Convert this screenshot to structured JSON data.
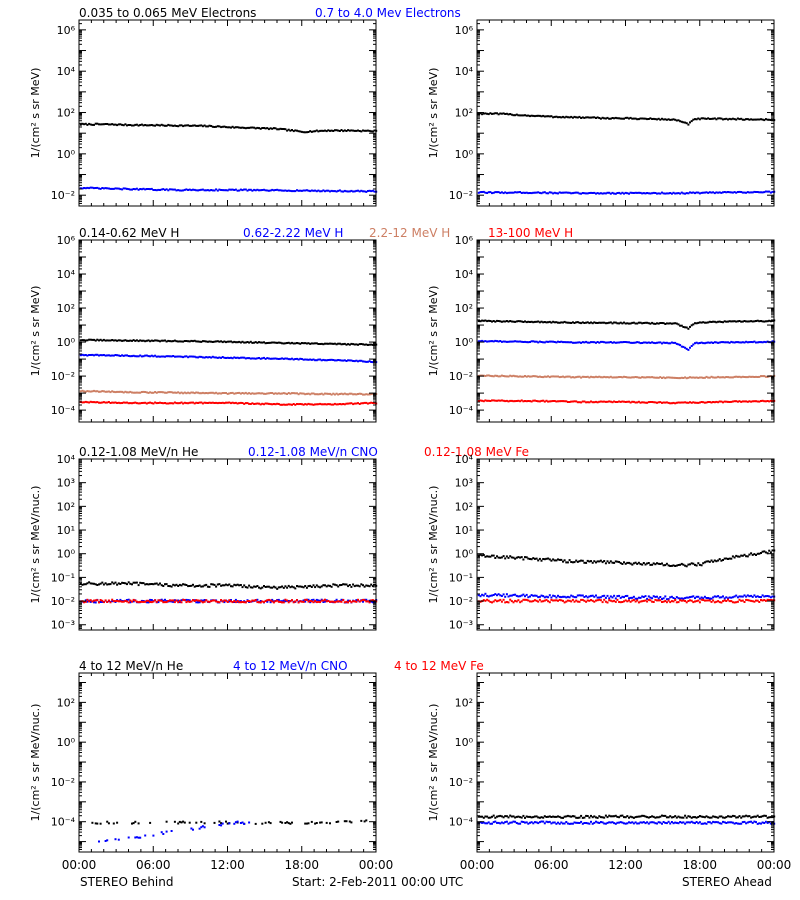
{
  "figure": {
    "footer_left": "STEREO Behind",
    "footer_center": "Start:  2-Feb-2011 00:00 UTC",
    "footer_right": "STEREO Ahead",
    "x_ticks": [
      "00:00",
      "06:00",
      "12:00",
      "18:00",
      "00:00"
    ],
    "colors": {
      "black": "#000000",
      "blue": "#0000ff",
      "tan": "#cd7f64",
      "red": "#ff0000",
      "axis": "#000000"
    }
  },
  "chart_data": [
    {
      "id": "electrons-behind",
      "type": "scatter",
      "spacecraft": "STEREO Behind",
      "ylabel": "1/(cm² s sr MeV)",
      "yscale": "log",
      "ylim": [
        0.003,
        3000000
      ],
      "y_ticks": [
        0.01,
        1,
        100,
        10000,
        1000000
      ],
      "xlim_hours": [
        0,
        24
      ],
      "legend": [
        {
          "text": "0.035 to 0.065 MeV Electrons",
          "color": "#000000"
        },
        {
          "text": "0.7 to 4.0 Mev Electrons",
          "color": "#0000ff"
        }
      ],
      "series": [
        {
          "name": "0.035 to 0.065 MeV Electrons",
          "color": "#000000",
          "x": [
            0,
            2,
            4,
            6,
            8,
            10,
            12,
            14,
            16,
            18,
            20,
            22,
            24
          ],
          "y": [
            30,
            30,
            28,
            27,
            26,
            25,
            22,
            20,
            18,
            13,
            15,
            15,
            14
          ]
        },
        {
          "name": "0.7 to 4.0 Mev Electrons",
          "color": "#0000ff",
          "x": [
            0,
            4,
            8,
            12,
            16,
            20,
            24
          ],
          "y": [
            0.025,
            0.022,
            0.02,
            0.02,
            0.019,
            0.018,
            0.017
          ]
        }
      ]
    },
    {
      "id": "electrons-ahead",
      "type": "scatter",
      "spacecraft": "STEREO Ahead",
      "ylabel": "1/(cm² s sr MeV)",
      "yscale": "log",
      "ylim": [
        0.003,
        3000000
      ],
      "y_ticks": [
        0.01,
        1,
        100,
        10000,
        1000000
      ],
      "xlim_hours": [
        0,
        24
      ],
      "legend": [],
      "series": [
        {
          "name": "0.035 to 0.065 MeV Electrons",
          "color": "#000000",
          "x": [
            0,
            2,
            4,
            6,
            8,
            10,
            12,
            14,
            16,
            17,
            17.5,
            18,
            20,
            22,
            24
          ],
          "y": [
            100,
            95,
            80,
            70,
            65,
            60,
            58,
            55,
            50,
            30,
            55,
            55,
            55,
            52,
            50
          ]
        },
        {
          "name": "0.7 to 4.0 Mev Electrons",
          "color": "#0000ff",
          "x": [
            0,
            4,
            8,
            12,
            16,
            20,
            24
          ],
          "y": [
            0.015,
            0.015,
            0.014,
            0.014,
            0.014,
            0.015,
            0.016
          ]
        }
      ]
    },
    {
      "id": "protons-behind",
      "type": "scatter",
      "spacecraft": "STEREO Behind",
      "ylabel": "1/(cm² s sr MeV)",
      "yscale": "log",
      "ylim": [
        2e-05,
        1000000
      ],
      "y_ticks": [
        0.0001,
        0.01,
        1,
        100,
        10000,
        1000000
      ],
      "xlim_hours": [
        0,
        24
      ],
      "legend": [
        {
          "text": "0.14-0.62 MeV H",
          "color": "#000000"
        },
        {
          "text": "0.62-2.22 MeV H",
          "color": "#0000ff"
        },
        {
          "text": "2.2-12 MeV H",
          "color": "#cd7f64"
        },
        {
          "text": "13-100 MeV H",
          "color": "#ff0000"
        }
      ],
      "series": [
        {
          "name": "0.14-0.62 MeV H",
          "color": "#000000",
          "x": [
            0,
            4,
            8,
            12,
            16,
            20,
            24
          ],
          "y": [
            1.5,
            1.4,
            1.3,
            1.2,
            1.0,
            0.9,
            0.8
          ]
        },
        {
          "name": "0.62-2.22 MeV H",
          "color": "#0000ff",
          "x": [
            0,
            4,
            8,
            12,
            16,
            20,
            24
          ],
          "y": [
            0.2,
            0.18,
            0.16,
            0.14,
            0.12,
            0.1,
            0.08
          ]
        },
        {
          "name": "2.2-12 MeV H",
          "color": "#cd7f64",
          "x": [
            0,
            4,
            8,
            12,
            16,
            20,
            24
          ],
          "y": [
            0.0015,
            0.0013,
            0.0012,
            0.0011,
            0.0011,
            0.001,
            0.001
          ]
        },
        {
          "name": "13-100 MeV H",
          "color": "#ff0000",
          "x": [
            0,
            4,
            8,
            12,
            16,
            20,
            24
          ],
          "y": [
            0.00035,
            0.0003,
            0.0003,
            0.0003,
            0.00025,
            0.00025,
            0.0003
          ]
        }
      ]
    },
    {
      "id": "protons-ahead",
      "type": "scatter",
      "spacecraft": "STEREO Ahead",
      "ylabel": "1/(cm² s sr MeV)",
      "yscale": "log",
      "ylim": [
        2e-05,
        1000000
      ],
      "y_ticks": [
        0.0001,
        0.01,
        1,
        100,
        10000,
        1000000
      ],
      "xlim_hours": [
        0,
        24
      ],
      "legend": [],
      "series": [
        {
          "name": "0.14-0.62 MeV H",
          "color": "#000000",
          "x": [
            0,
            4,
            8,
            12,
            16,
            17,
            17.5,
            18,
            20,
            24
          ],
          "y": [
            20,
            18,
            16,
            15,
            14,
            7,
            15,
            16,
            18,
            20
          ]
        },
        {
          "name": "0.62-2.22 MeV H",
          "color": "#0000ff",
          "x": [
            0,
            4,
            8,
            12,
            16,
            17,
            17.5,
            18,
            20,
            24
          ],
          "y": [
            1.3,
            1.2,
            1.1,
            1.1,
            1.0,
            0.4,
            1.0,
            1.0,
            1.1,
            1.2
          ]
        },
        {
          "name": "2.2-12 MeV H",
          "color": "#cd7f64",
          "x": [
            0,
            4,
            8,
            12,
            16,
            20,
            24
          ],
          "y": [
            0.012,
            0.011,
            0.01,
            0.01,
            0.009,
            0.01,
            0.011
          ]
        },
        {
          "name": "13-100 MeV H",
          "color": "#ff0000",
          "x": [
            0,
            4,
            8,
            12,
            16,
            20,
            24
          ],
          "y": [
            0.0004,
            0.0004,
            0.00035,
            0.00035,
            0.0003,
            0.00035,
            0.0004
          ]
        }
      ]
    },
    {
      "id": "heavy-low-behind",
      "type": "scatter",
      "spacecraft": "STEREO Behind",
      "ylabel": "1/(cm² s sr MeV/nuc.)",
      "yscale": "log",
      "ylim": [
        0.0006,
        10000
      ],
      "y_ticks": [
        0.001,
        0.01,
        0.1,
        1,
        10,
        100,
        1000,
        10000
      ],
      "xlim_hours": [
        0,
        24
      ],
      "legend": [
        {
          "text": "0.12-1.08 MeV/n He",
          "color": "#000000"
        },
        {
          "text": "0.12-1.08 MeV/n CNO",
          "color": "#0000ff"
        },
        {
          "text": "0.12-1.08 MeV Fe",
          "color": "#ff0000"
        }
      ],
      "series": [
        {
          "name": "0.12-1.08 MeV/n He",
          "color": "#000000",
          "x": [
            0,
            4,
            8,
            12,
            16,
            20,
            24
          ],
          "y": [
            0.06,
            0.06,
            0.05,
            0.05,
            0.04,
            0.05,
            0.05
          ]
        },
        {
          "name": "0.12-1.08 MeV/n CNO",
          "color": "#0000ff",
          "x": [
            0,
            4,
            8,
            12,
            16,
            20,
            24
          ],
          "y": [
            0.011,
            0.011,
            0.011,
            0.011,
            0.011,
            0.011,
            0.011
          ]
        },
        {
          "name": "0.12-1.08 MeV Fe",
          "color": "#ff0000",
          "x": [
            0,
            4,
            8,
            12,
            16,
            20,
            24
          ],
          "y": [
            0.011,
            0.011,
            0.011,
            0.011,
            0.011,
            0.011,
            0.011
          ]
        }
      ]
    },
    {
      "id": "heavy-low-ahead",
      "type": "scatter",
      "spacecraft": "STEREO Ahead",
      "ylabel": "1/(cm² s sr MeV/nuc.)",
      "yscale": "log",
      "ylim": [
        0.0006,
        10000
      ],
      "y_ticks": [
        0.001,
        0.01,
        0.1,
        1,
        10,
        100,
        1000,
        10000
      ],
      "xlim_hours": [
        0,
        24
      ],
      "legend": [],
      "series": [
        {
          "name": "0.12-1.08 MeV/n He",
          "color": "#000000",
          "x": [
            0,
            2,
            4,
            6,
            8,
            10,
            12,
            14,
            16,
            18,
            20,
            22,
            24
          ],
          "y": [
            0.9,
            0.8,
            0.7,
            0.6,
            0.5,
            0.5,
            0.45,
            0.4,
            0.35,
            0.4,
            0.7,
            1.0,
            1.4
          ]
        },
        {
          "name": "0.12-1.08 MeV/n CNO",
          "color": "#0000ff",
          "x": [
            0,
            4,
            8,
            12,
            16,
            20,
            24
          ],
          "y": [
            0.02,
            0.018,
            0.017,
            0.016,
            0.015,
            0.016,
            0.018
          ]
        },
        {
          "name": "0.12-1.08 MeV Fe",
          "color": "#ff0000",
          "x": [
            0,
            4,
            8,
            12,
            16,
            20,
            24
          ],
          "y": [
            0.011,
            0.011,
            0.011,
            0.011,
            0.011,
            0.011,
            0.011
          ]
        }
      ]
    },
    {
      "id": "heavy-high-behind",
      "type": "scatter",
      "spacecraft": "STEREO Behind",
      "ylabel": "1/(cm² s sr MeV/nuc.)",
      "yscale": "log",
      "ylim": [
        3e-06,
        3000
      ],
      "y_ticks": [
        0.0001,
        0.01,
        1,
        100
      ],
      "xlim_hours": [
        0,
        24
      ],
      "legend": [
        {
          "text": "4 to 12 MeV/n He",
          "color": "#000000"
        },
        {
          "text": "4 to 12 MeV/n CNO",
          "color": "#0000ff"
        },
        {
          "text": "4 to 12 MeV Fe",
          "color": "#ff0000"
        }
      ],
      "series": [
        {
          "name": "4 to 12 MeV/n He",
          "color": "#000000",
          "x": [
            1,
            8,
            9,
            10,
            18,
            19,
            20,
            21,
            23.8
          ],
          "y": [
            0.0001,
            0.0001,
            0.0001,
            0.0001,
            0.0001,
            0.0001,
            0.0001,
            0.0001,
            0.00015
          ]
        },
        {
          "name": "4 to 12 MeV/n CNO",
          "color": "#0000ff",
          "x": [
            1.5,
            12.5,
            13,
            13.5
          ],
          "y": [
            1e-05,
            0.0001,
            0.0001,
            0.0001
          ]
        }
      ]
    },
    {
      "id": "heavy-high-ahead",
      "type": "scatter",
      "spacecraft": "STEREO Ahead",
      "ylabel": "1/(cm² s sr MeV/nuc.)",
      "yscale": "log",
      "ylim": [
        3e-06,
        3000
      ],
      "y_ticks": [
        0.0001,
        0.01,
        1,
        100
      ],
      "xlim_hours": [
        0,
        24
      ],
      "legend": [],
      "series": [
        {
          "name": "4 to 12 MeV/n He",
          "color": "#000000",
          "x": [
            0,
            4,
            8,
            12,
            16,
            20,
            24
          ],
          "y": [
            0.0002,
            0.0002,
            0.0002,
            0.0002,
            0.0002,
            0.0002,
            0.0002
          ]
        },
        {
          "name": "4 to 12 MeV/n CNO",
          "color": "#0000ff",
          "x": [
            0,
            4,
            8,
            12,
            16,
            20,
            24
          ],
          "y": [
            0.0001,
            0.0001,
            0.0001,
            0.0001,
            0.0001,
            0.0001,
            0.0001
          ]
        }
      ]
    }
  ]
}
